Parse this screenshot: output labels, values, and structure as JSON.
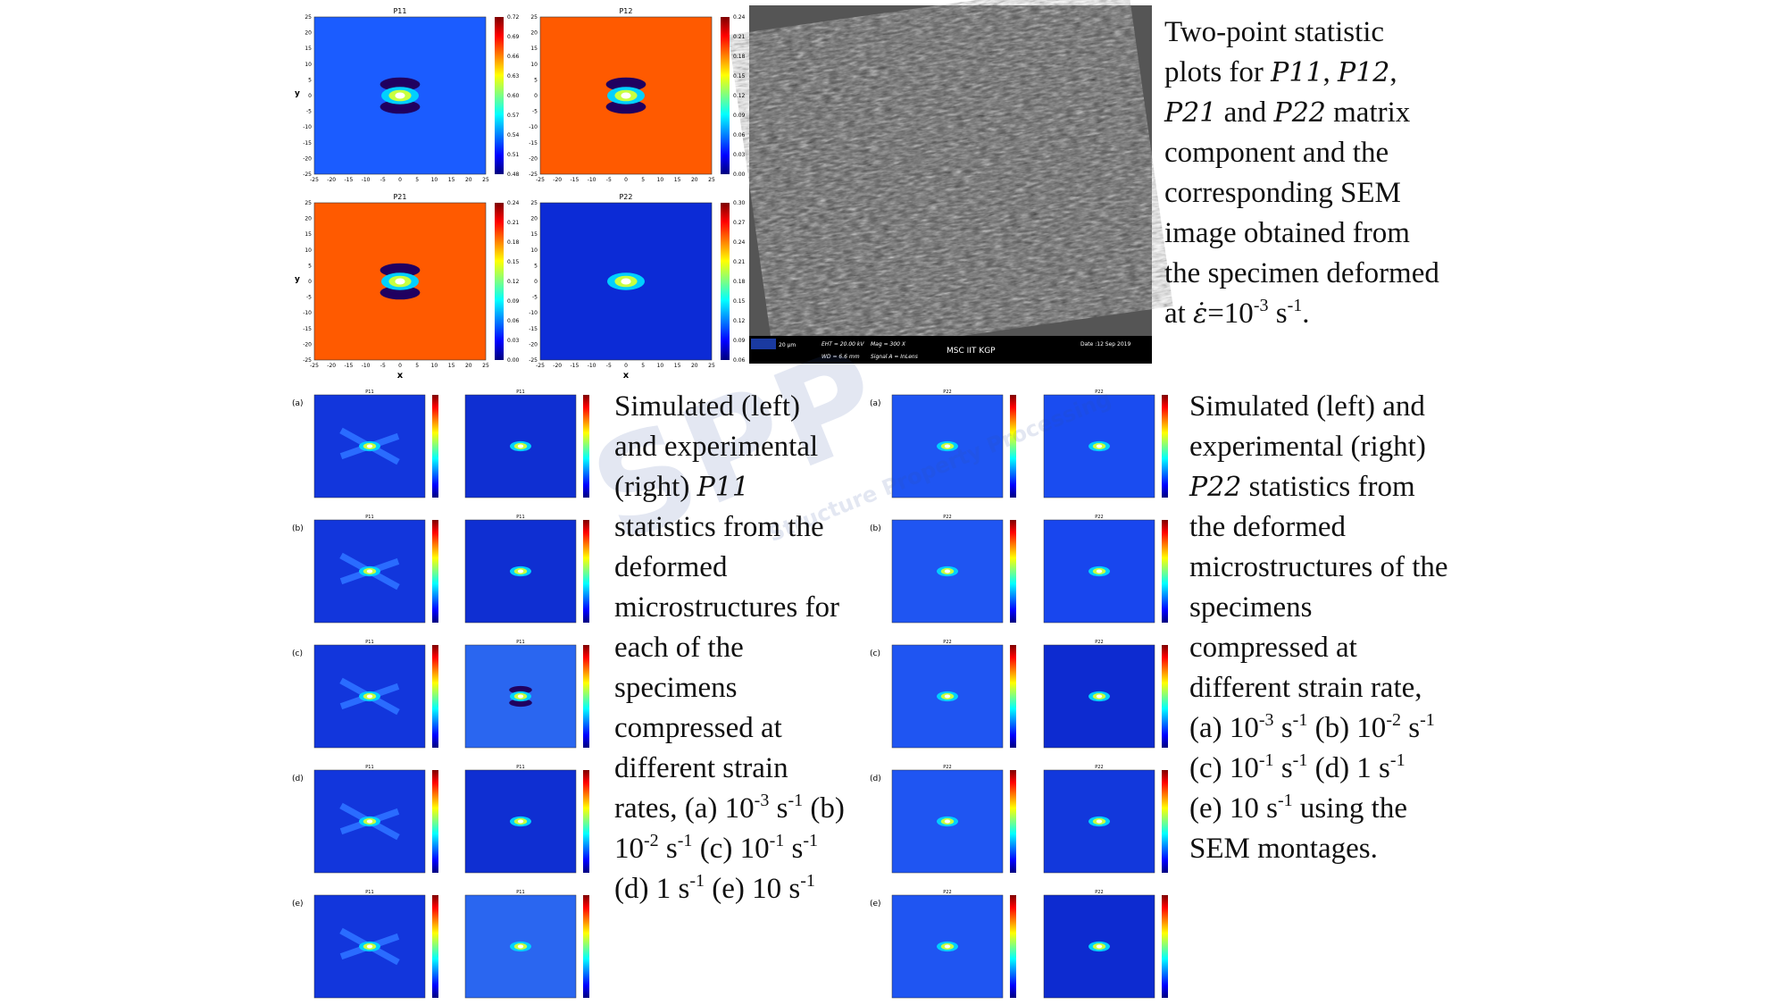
{
  "top_plots": [
    {
      "title": "P11",
      "bg": "#1b5cff",
      "colorbar": [
        "0.72",
        "0.69",
        "0.66",
        "0.63",
        "0.60",
        "0.57",
        "0.54",
        "0.51",
        "0.48"
      ]
    },
    {
      "title": "P12",
      "bg": "#ff5a00",
      "colorbar": [
        "0.24",
        "0.21",
        "0.18",
        "0.15",
        "0.12",
        "0.09",
        "0.06",
        "0.03",
        "0.00"
      ]
    },
    {
      "title": "P21",
      "bg": "#ff5a00",
      "colorbar": [
        "0.24",
        "0.21",
        "0.18",
        "0.15",
        "0.12",
        "0.09",
        "0.06",
        "0.03",
        "0.00"
      ]
    },
    {
      "title": "P22",
      "bg": "#0c2bd6",
      "colorbar": [
        "0.30",
        "0.27",
        "0.24",
        "0.21",
        "0.18",
        "0.15",
        "0.12",
        "0.09",
        "0.06"
      ]
    }
  ],
  "axis": {
    "x_label": "x",
    "y_label": "y",
    "ticks": [
      -25,
      -20,
      -15,
      -10,
      -5,
      0,
      5,
      10,
      15,
      20,
      25
    ]
  },
  "sem": {
    "scale": "20 µm",
    "eht": "EHT = 20.00 kV",
    "mag": "Mag = 300 X",
    "wd": "WD = 6.6 mm",
    "signal": "Signal A = InLens",
    "lab": "MSC IIT KGP",
    "date": "Date :12 Sep 2019"
  },
  "left_grid": {
    "rows": [
      "(a)",
      "(b)",
      "(c)",
      "(d)",
      "(e)"
    ],
    "titles": [
      "P11",
      "P11"
    ],
    "bgs": [
      [
        "#1236dc",
        "#0f2fd2"
      ],
      [
        "#1236dc",
        "#0f2fd2"
      ],
      [
        "#1236dc",
        "#2a66f0"
      ],
      [
        "#1236dc",
        "#0f2fd2"
      ],
      [
        "#1236dc",
        "#2a66f0"
      ]
    ]
  },
  "right_grid": {
    "rows": [
      "(a)",
      "(b)",
      "(c)",
      "(d)",
      "(e)"
    ],
    "titles": [
      "P22",
      "P22"
    ],
    "bgs": [
      [
        "#1f55f2",
        "#1a4cf0"
      ],
      [
        "#1f55f2",
        "#1846ee"
      ],
      [
        "#1f55f2",
        "#0d2bd0"
      ],
      [
        "#1f55f2",
        "#1238dc"
      ],
      [
        "#1f55f2",
        "#0d2bd0"
      ]
    ]
  },
  "watermark": {
    "logo": "SPP",
    "text": "Structure Property Processing"
  },
  "captions": [
    {
      "lines": [
        [
          "Two-point statistic"
        ],
        [
          "plots for ",
          {
            "em": "P11"
          },
          ", ",
          {
            "em": "P12"
          },
          ","
        ],
        [
          {
            "em": "P21"
          },
          " and ",
          {
            "em": "P22"
          },
          " matrix"
        ],
        [
          "component and the"
        ],
        [
          "corresponding SEM"
        ],
        [
          "image obtained from"
        ],
        [
          "the specimen deformed"
        ],
        [
          "at ",
          {
            "em": "ε̇"
          },
          "=10",
          {
            "sup": "-3"
          },
          " s",
          {
            "sup": "-1"
          },
          "."
        ]
      ]
    },
    {
      "lines": [
        [
          "Simulated (left)"
        ],
        [
          "and experimental"
        ],
        [
          "(right) ",
          {
            "em": "P11"
          }
        ],
        [
          "statistics from the"
        ],
        [
          "deformed"
        ],
        [
          "microstructures for"
        ],
        [
          "each of the"
        ],
        [
          "specimens"
        ],
        [
          "compressed at"
        ],
        [
          "different strain"
        ],
        [
          "rates, (a) 10",
          {
            "sup": "-3"
          },
          " s",
          {
            "sup": "-1"
          },
          " (b)"
        ],
        [
          "10",
          {
            "sup": "-2"
          },
          " s",
          {
            "sup": "-1"
          },
          " (c) 10",
          {
            "sup": "-1"
          },
          " s",
          {
            "sup": "-1"
          }
        ],
        [
          "(d) 1 s",
          {
            "sup": "-1"
          },
          " (e) 10 s",
          {
            "sup": "-1"
          }
        ]
      ]
    },
    {
      "lines": [
        [
          "Simulated (left) and"
        ],
        [
          "experimental (right)"
        ],
        [
          {
            "em": "P22"
          },
          " statistics from"
        ],
        [
          "the deformed"
        ],
        [
          "microstructures of the"
        ],
        [
          "specimens"
        ],
        [
          "compressed at"
        ],
        [
          "different strain rate,"
        ],
        [
          "(a) 10",
          {
            "sup": "-3"
          },
          " s",
          {
            "sup": "-1"
          },
          " (b) 10",
          {
            "sup": "-2"
          },
          " s",
          {
            "sup": "-1"
          }
        ],
        [
          "(c) 10",
          {
            "sup": "-1"
          },
          " s",
          {
            "sup": "-1"
          },
          " (d) 1 s",
          {
            "sup": "-1"
          }
        ],
        [
          "(e) 10 s",
          {
            "sup": "-1"
          },
          " using the"
        ],
        [
          "SEM montages."
        ]
      ]
    }
  ]
}
